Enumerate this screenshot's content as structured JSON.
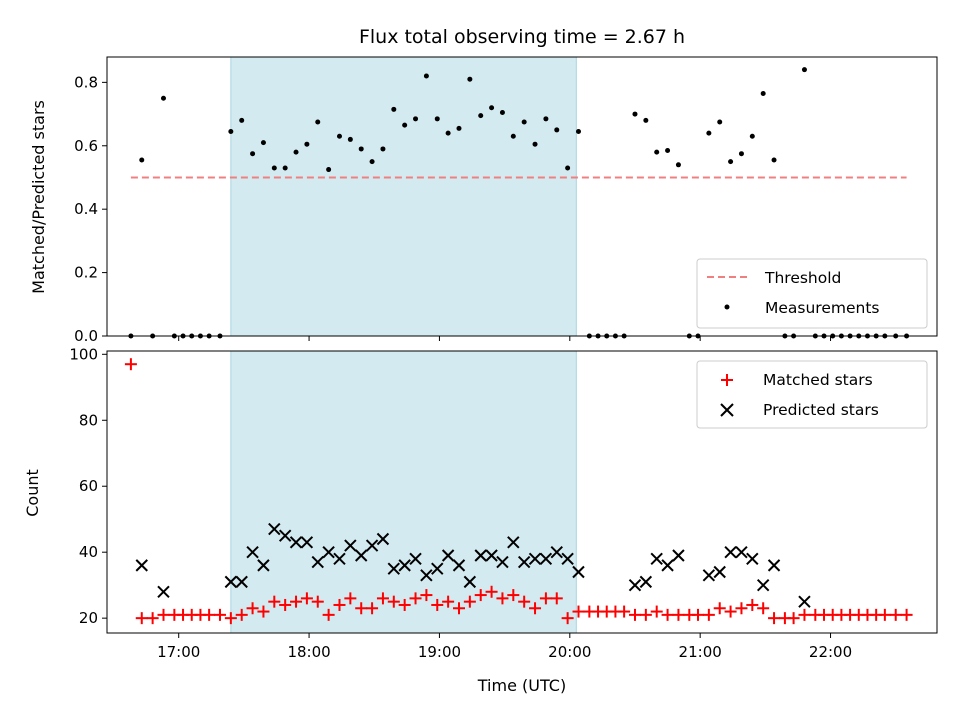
{
  "chart_data": [
    {
      "type": "scatter",
      "title": "Flux total observing time = 2.67 h",
      "xlabel": "",
      "ylabel": "Matched/Predicted stars",
      "xlim": [
        "16:27",
        "22:49"
      ],
      "ylim": [
        0,
        0.88
      ],
      "yticks": [
        "0.0",
        "0.2",
        "0.4",
        "0.6",
        "0.8"
      ],
      "grid": false,
      "legend_position": "lower-right",
      "highlight_region": {
        "from": "17:24",
        "to": "20:03",
        "color": "#d3eaf0"
      },
      "threshold": {
        "name": "Threshold",
        "value": 0.5,
        "from": "16:38",
        "to": "22:35",
        "color": "#f08080"
      },
      "series": [
        {
          "name": "Measurements",
          "color": "#000000",
          "points": [
            [
              "16:38",
              0
            ],
            [
              "16:43",
              0.555
            ],
            [
              "16:48",
              0
            ],
            [
              "16:53",
              0.75
            ],
            [
              "16:58",
              0
            ],
            [
              "17:02",
              0
            ],
            [
              "17:06",
              0
            ],
            [
              "17:10",
              0
            ],
            [
              "17:14",
              0
            ],
            [
              "17:19",
              0
            ],
            [
              "17:24",
              0.645
            ],
            [
              "17:29",
              0.68
            ],
            [
              "17:34",
              0.575
            ],
            [
              "17:39",
              0.61
            ],
            [
              "17:44",
              0.53
            ],
            [
              "17:49",
              0.53
            ],
            [
              "17:54",
              0.58
            ],
            [
              "17:59",
              0.605
            ],
            [
              "18:04",
              0.675
            ],
            [
              "18:09",
              0.525
            ],
            [
              "18:14",
              0.63
            ],
            [
              "18:19",
              0.62
            ],
            [
              "18:24",
              0.59
            ],
            [
              "18:29",
              0.55
            ],
            [
              "18:34",
              0.59
            ],
            [
              "18:39",
              0.715
            ],
            [
              "18:44",
              0.665
            ],
            [
              "18:49",
              0.685
            ],
            [
              "18:54",
              0.82
            ],
            [
              "18:59",
              0.685
            ],
            [
              "19:04",
              0.64
            ],
            [
              "19:09",
              0.655
            ],
            [
              "19:14",
              0.81
            ],
            [
              "19:19",
              0.695
            ],
            [
              "19:24",
              0.72
            ],
            [
              "19:29",
              0.705
            ],
            [
              "19:34",
              0.63
            ],
            [
              "19:39",
              0.675
            ],
            [
              "19:44",
              0.605
            ],
            [
              "19:49",
              0.685
            ],
            [
              "19:54",
              0.65
            ],
            [
              "19:59",
              0.53
            ],
            [
              "20:04",
              0.645
            ],
            [
              "20:09",
              0
            ],
            [
              "20:13",
              0
            ],
            [
              "20:17",
              0
            ],
            [
              "20:21",
              0
            ],
            [
              "20:25",
              0
            ],
            [
              "20:30",
              0.7
            ],
            [
              "20:35",
              0.68
            ],
            [
              "20:40",
              0.58
            ],
            [
              "20:45",
              0.585
            ],
            [
              "20:50",
              0.54
            ],
            [
              "20:55",
              0
            ],
            [
              "20:59",
              0
            ],
            [
              "21:04",
              0.64
            ],
            [
              "21:09",
              0.675
            ],
            [
              "21:14",
              0.55
            ],
            [
              "21:19",
              0.575
            ],
            [
              "21:24",
              0.63
            ],
            [
              "21:29",
              0.765
            ],
            [
              "21:34",
              0.555
            ],
            [
              "21:39",
              0
            ],
            [
              "21:43",
              0
            ],
            [
              "21:48",
              0.84
            ],
            [
              "21:53",
              0
            ],
            [
              "21:57",
              0
            ],
            [
              "22:01",
              0
            ],
            [
              "22:05",
              0
            ],
            [
              "22:09",
              0
            ],
            [
              "22:13",
              0
            ],
            [
              "22:17",
              0
            ],
            [
              "22:21",
              0
            ],
            [
              "22:25",
              0
            ],
            [
              "22:30",
              0
            ],
            [
              "22:35",
              0
            ]
          ]
        }
      ]
    },
    {
      "type": "scatter",
      "xlabel": "Time (UTC)",
      "ylabel": "Count",
      "xlim": [
        "16:27",
        "22:49"
      ],
      "ylim": [
        15.5,
        101
      ],
      "xticks": [
        "17:00",
        "18:00",
        "19:00",
        "20:00",
        "21:00",
        "22:00"
      ],
      "yticks": [
        "20",
        "40",
        "60",
        "80",
        "100"
      ],
      "grid": false,
      "legend_position": "upper-right",
      "highlight_region": {
        "from": "17:24",
        "to": "20:03",
        "color": "#d3eaf0"
      },
      "series": [
        {
          "name": "Matched stars",
          "marker": "plus",
          "color": "#ff0000",
          "points": [
            [
              "16:38",
              97
            ],
            [
              "16:43",
              20
            ],
            [
              "16:48",
              20
            ],
            [
              "16:53",
              21
            ],
            [
              "16:58",
              21
            ],
            [
              "17:02",
              21
            ],
            [
              "17:06",
              21
            ],
            [
              "17:10",
              21
            ],
            [
              "17:14",
              21
            ],
            [
              "17:19",
              21
            ],
            [
              "17:24",
              20
            ],
            [
              "17:29",
              21
            ],
            [
              "17:34",
              23
            ],
            [
              "17:39",
              22
            ],
            [
              "17:44",
              25
            ],
            [
              "17:49",
              24
            ],
            [
              "17:54",
              25
            ],
            [
              "17:59",
              26
            ],
            [
              "18:04",
              25
            ],
            [
              "18:09",
              21
            ],
            [
              "18:14",
              24
            ],
            [
              "18:19",
              26
            ],
            [
              "18:24",
              23
            ],
            [
              "18:29",
              23
            ],
            [
              "18:34",
              26
            ],
            [
              "18:39",
              25
            ],
            [
              "18:44",
              24
            ],
            [
              "18:49",
              26
            ],
            [
              "18:54",
              27
            ],
            [
              "18:59",
              24
            ],
            [
              "19:04",
              25
            ],
            [
              "19:09",
              23
            ],
            [
              "19:14",
              25
            ],
            [
              "19:19",
              27
            ],
            [
              "19:24",
              28
            ],
            [
              "19:29",
              26
            ],
            [
              "19:34",
              27
            ],
            [
              "19:39",
              25
            ],
            [
              "19:44",
              23
            ],
            [
              "19:49",
              26
            ],
            [
              "19:54",
              26
            ],
            [
              "19:59",
              20
            ],
            [
              "20:04",
              22
            ],
            [
              "20:09",
              22
            ],
            [
              "20:13",
              22
            ],
            [
              "20:17",
              22
            ],
            [
              "20:21",
              22
            ],
            [
              "20:25",
              22
            ],
            [
              "20:30",
              21
            ],
            [
              "20:35",
              21
            ],
            [
              "20:40",
              22
            ],
            [
              "20:45",
              21
            ],
            [
              "20:50",
              21
            ],
            [
              "20:55",
              21
            ],
            [
              "20:59",
              21
            ],
            [
              "21:04",
              21
            ],
            [
              "21:09",
              23
            ],
            [
              "21:14",
              22
            ],
            [
              "21:19",
              23
            ],
            [
              "21:24",
              24
            ],
            [
              "21:29",
              23
            ],
            [
              "21:34",
              20
            ],
            [
              "21:39",
              20
            ],
            [
              "21:43",
              20
            ],
            [
              "21:48",
              21
            ],
            [
              "21:53",
              21
            ],
            [
              "21:57",
              21
            ],
            [
              "22:01",
              21
            ],
            [
              "22:05",
              21
            ],
            [
              "22:09",
              21
            ],
            [
              "22:13",
              21
            ],
            [
              "22:17",
              21
            ],
            [
              "22:21",
              21
            ],
            [
              "22:25",
              21
            ],
            [
              "22:30",
              21
            ],
            [
              "22:35",
              21
            ]
          ]
        },
        {
          "name": "Predicted stars",
          "marker": "x",
          "color": "#000000",
          "points": [
            [
              "16:43",
              36
            ],
            [
              "16:53",
              28
            ],
            [
              "17:24",
              31
            ],
            [
              "17:29",
              31
            ],
            [
              "17:34",
              40
            ],
            [
              "17:39",
              36
            ],
            [
              "17:44",
              47
            ],
            [
              "17:49",
              45
            ],
            [
              "17:54",
              43
            ],
            [
              "17:59",
              43
            ],
            [
              "18:04",
              37
            ],
            [
              "18:09",
              40
            ],
            [
              "18:14",
              38
            ],
            [
              "18:19",
              42
            ],
            [
              "18:24",
              39
            ],
            [
              "18:29",
              42
            ],
            [
              "18:34",
              44
            ],
            [
              "18:39",
              35
            ],
            [
              "18:44",
              36
            ],
            [
              "18:49",
              38
            ],
            [
              "18:54",
              33
            ],
            [
              "18:59",
              35
            ],
            [
              "19:04",
              39
            ],
            [
              "19:09",
              36
            ],
            [
              "19:14",
              31
            ],
            [
              "19:19",
              39
            ],
            [
              "19:24",
              39
            ],
            [
              "19:29",
              37
            ],
            [
              "19:34",
              43
            ],
            [
              "19:39",
              37
            ],
            [
              "19:44",
              38
            ],
            [
              "19:49",
              38
            ],
            [
              "19:54",
              40
            ],
            [
              "19:59",
              38
            ],
            [
              "20:04",
              34
            ],
            [
              "20:30",
              30
            ],
            [
              "20:35",
              31
            ],
            [
              "20:40",
              38
            ],
            [
              "20:45",
              36
            ],
            [
              "20:50",
              39
            ],
            [
              "21:04",
              33
            ],
            [
              "21:09",
              34
            ],
            [
              "21:14",
              40
            ],
            [
              "21:19",
              40
            ],
            [
              "21:24",
              38
            ],
            [
              "21:29",
              30
            ],
            [
              "21:34",
              36
            ],
            [
              "21:48",
              25
            ]
          ]
        }
      ]
    }
  ]
}
